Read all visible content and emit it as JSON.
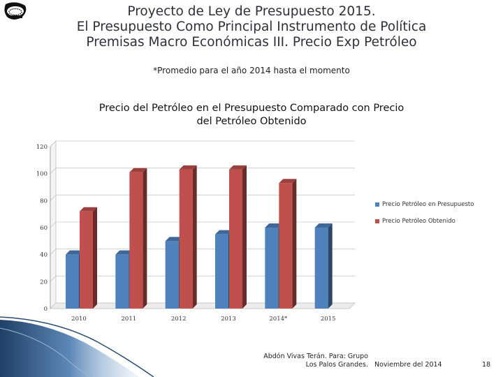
{
  "header": {
    "title_line1": "Proyecto de Ley de Presupuesto 2015.",
    "title_line2": "El Presupuesto Como Principal Instrumento de Política",
    "title_line3": "Premisas Macro Económicas III. Precio Exp Petróleo",
    "subtitle": "*Promedio para el año 2014 hasta el momento"
  },
  "chart_data": {
    "type": "bar",
    "title_line1": "Precio del Petróleo en el Presupuesto Comparado con Precio",
    "title_line2": "del Petróleo Obtenido",
    "categories": [
      "2010",
      "2011",
      "2012",
      "2013",
      "2014*",
      "2015"
    ],
    "series": [
      {
        "name": "Precio Petróleo en Presupuesto",
        "color": "#4f81bd",
        "values": [
          40,
          40,
          50,
          55,
          60,
          60
        ]
      },
      {
        "name": "Precio Petróleo Obtenido",
        "color": "#c0504d",
        "values": [
          72,
          101,
          103,
          103,
          93,
          null
        ]
      }
    ],
    "yticks": [
      0,
      20,
      40,
      60,
      80,
      100,
      120
    ],
    "ylim": [
      0,
      120
    ],
    "legend_position": "right"
  },
  "footer": {
    "author_line1": "Abdón Vivas Terán. Para: Grupo",
    "author_line2": "Los Palos Grandes.",
    "date": "Noviembre del 2014",
    "page": "18"
  }
}
